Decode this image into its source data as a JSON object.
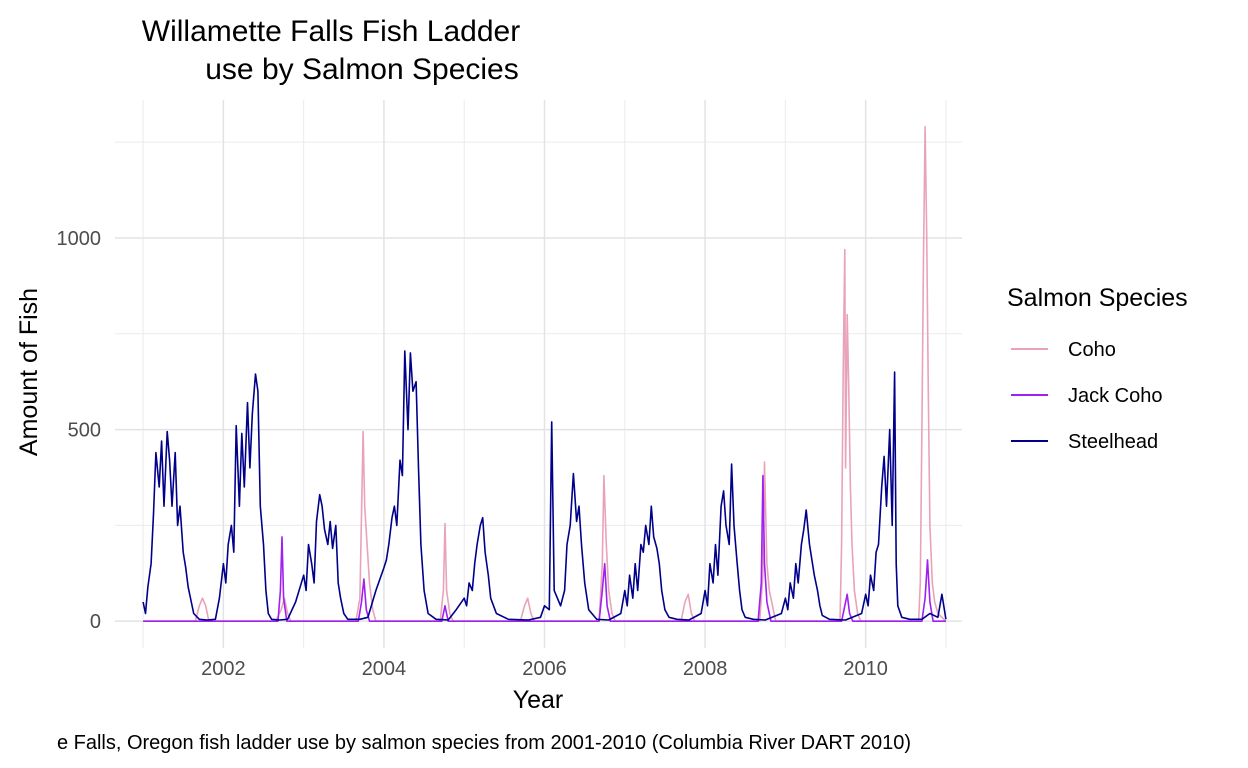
{
  "chart_data": {
    "type": "line",
    "title_line1": "Willamette Falls Fish Ladder",
    "title_line2": "use by Salmon Species",
    "xlabel": "Year",
    "ylabel": "Amount of Fish",
    "caption": "e Falls, Oregon fish ladder use by salmon species from 2001-2010 (Columbia River DART 2010)",
    "x_ticks": [
      2002,
      2004,
      2006,
      2008,
      2010
    ],
    "y_ticks": [
      0,
      500,
      1000
    ],
    "xlim": [
      2000.65,
      2011.2
    ],
    "ylim": [
      -70,
      1360
    ],
    "grid": true,
    "legend": {
      "title": "Salmon Species",
      "position": "right",
      "entries": [
        {
          "name": "Coho",
          "color": "#E8A3B8"
        },
        {
          "name": "Jack Coho",
          "color": "#A020F0"
        },
        {
          "name": "Steelhead",
          "color": "#00008B"
        }
      ]
    },
    "series": [
      {
        "name": "Steelhead",
        "color": "#00008B",
        "points": [
          [
            2001.0,
            50
          ],
          [
            2001.03,
            20
          ],
          [
            2001.06,
            90
          ],
          [
            2001.1,
            150
          ],
          [
            2001.13,
            280
          ],
          [
            2001.16,
            440
          ],
          [
            2001.2,
            350
          ],
          [
            2001.23,
            470
          ],
          [
            2001.26,
            300
          ],
          [
            2001.3,
            495
          ],
          [
            2001.33,
            420
          ],
          [
            2001.36,
            300
          ],
          [
            2001.4,
            440
          ],
          [
            2001.43,
            250
          ],
          [
            2001.46,
            300
          ],
          [
            2001.5,
            180
          ],
          [
            2001.53,
            140
          ],
          [
            2001.56,
            90
          ],
          [
            2001.6,
            50
          ],
          [
            2001.63,
            20
          ],
          [
            2001.7,
            5
          ],
          [
            2001.8,
            3
          ],
          [
            2001.9,
            5
          ],
          [
            2001.95,
            60
          ],
          [
            2002.0,
            150
          ],
          [
            2002.03,
            100
          ],
          [
            2002.06,
            200
          ],
          [
            2002.1,
            250
          ],
          [
            2002.13,
            180
          ],
          [
            2002.16,
            510
          ],
          [
            2002.2,
            300
          ],
          [
            2002.23,
            490
          ],
          [
            2002.26,
            350
          ],
          [
            2002.3,
            570
          ],
          [
            2002.33,
            400
          ],
          [
            2002.36,
            540
          ],
          [
            2002.4,
            645
          ],
          [
            2002.43,
            600
          ],
          [
            2002.46,
            300
          ],
          [
            2002.5,
            200
          ],
          [
            2002.53,
            80
          ],
          [
            2002.56,
            20
          ],
          [
            2002.6,
            5
          ],
          [
            2002.7,
            3
          ],
          [
            2002.8,
            5
          ],
          [
            2002.9,
            50
          ],
          [
            2003.0,
            120
          ],
          [
            2003.03,
            80
          ],
          [
            2003.06,
            200
          ],
          [
            2003.1,
            150
          ],
          [
            2003.13,
            100
          ],
          [
            2003.16,
            260
          ],
          [
            2003.2,
            330
          ],
          [
            2003.23,
            300
          ],
          [
            2003.26,
            240
          ],
          [
            2003.3,
            200
          ],
          [
            2003.33,
            260
          ],
          [
            2003.36,
            190
          ],
          [
            2003.4,
            250
          ],
          [
            2003.43,
            100
          ],
          [
            2003.46,
            60
          ],
          [
            2003.5,
            20
          ],
          [
            2003.55,
            5
          ],
          [
            2003.7,
            5
          ],
          [
            2003.8,
            10
          ],
          [
            2003.9,
            80
          ],
          [
            2004.0,
            140
          ],
          [
            2004.03,
            160
          ],
          [
            2004.06,
            200
          ],
          [
            2004.1,
            270
          ],
          [
            2004.13,
            300
          ],
          [
            2004.16,
            250
          ],
          [
            2004.2,
            420
          ],
          [
            2004.23,
            380
          ],
          [
            2004.26,
            705
          ],
          [
            2004.3,
            500
          ],
          [
            2004.33,
            700
          ],
          [
            2004.36,
            600
          ],
          [
            2004.4,
            625
          ],
          [
            2004.43,
            400
          ],
          [
            2004.46,
            200
          ],
          [
            2004.5,
            80
          ],
          [
            2004.55,
            20
          ],
          [
            2004.65,
            5
          ],
          [
            2004.8,
            3
          ],
          [
            2004.9,
            30
          ],
          [
            2005.0,
            60
          ],
          [
            2005.03,
            40
          ],
          [
            2005.06,
            100
          ],
          [
            2005.1,
            80
          ],
          [
            2005.13,
            150
          ],
          [
            2005.16,
            200
          ],
          [
            2005.2,
            250
          ],
          [
            2005.23,
            270
          ],
          [
            2005.26,
            180
          ],
          [
            2005.3,
            120
          ],
          [
            2005.33,
            60
          ],
          [
            2005.4,
            20
          ],
          [
            2005.55,
            5
          ],
          [
            2005.8,
            3
          ],
          [
            2005.95,
            10
          ],
          [
            2006.0,
            40
          ],
          [
            2006.06,
            30
          ],
          [
            2006.09,
            520
          ],
          [
            2006.12,
            80
          ],
          [
            2006.16,
            60
          ],
          [
            2006.2,
            40
          ],
          [
            2006.25,
            80
          ],
          [
            2006.28,
            200
          ],
          [
            2006.32,
            250
          ],
          [
            2006.36,
            385
          ],
          [
            2006.4,
            260
          ],
          [
            2006.43,
            300
          ],
          [
            2006.46,
            200
          ],
          [
            2006.5,
            100
          ],
          [
            2006.55,
            30
          ],
          [
            2006.65,
            5
          ],
          [
            2006.8,
            3
          ],
          [
            2006.95,
            20
          ],
          [
            2007.0,
            80
          ],
          [
            2007.03,
            40
          ],
          [
            2007.06,
            120
          ],
          [
            2007.1,
            60
          ],
          [
            2007.13,
            150
          ],
          [
            2007.16,
            80
          ],
          [
            2007.2,
            200
          ],
          [
            2007.23,
            180
          ],
          [
            2007.26,
            250
          ],
          [
            2007.3,
            200
          ],
          [
            2007.33,
            300
          ],
          [
            2007.36,
            220
          ],
          [
            2007.4,
            190
          ],
          [
            2007.43,
            150
          ],
          [
            2007.46,
            80
          ],
          [
            2007.5,
            30
          ],
          [
            2007.55,
            10
          ],
          [
            2007.65,
            5
          ],
          [
            2007.8,
            3
          ],
          [
            2007.95,
            20
          ],
          [
            2008.0,
            80
          ],
          [
            2008.03,
            40
          ],
          [
            2008.06,
            150
          ],
          [
            2008.1,
            100
          ],
          [
            2008.13,
            200
          ],
          [
            2008.16,
            120
          ],
          [
            2008.2,
            300
          ],
          [
            2008.23,
            340
          ],
          [
            2008.26,
            250
          ],
          [
            2008.3,
            200
          ],
          [
            2008.33,
            410
          ],
          [
            2008.36,
            250
          ],
          [
            2008.4,
            150
          ],
          [
            2008.43,
            80
          ],
          [
            2008.46,
            30
          ],
          [
            2008.5,
            10
          ],
          [
            2008.6,
            5
          ],
          [
            2008.75,
            3
          ],
          [
            2008.95,
            20
          ],
          [
            2009.0,
            60
          ],
          [
            2009.03,
            30
          ],
          [
            2009.06,
            100
          ],
          [
            2009.1,
            60
          ],
          [
            2009.13,
            150
          ],
          [
            2009.16,
            100
          ],
          [
            2009.2,
            200
          ],
          [
            2009.23,
            240
          ],
          [
            2009.26,
            290
          ],
          [
            2009.3,
            200
          ],
          [
            2009.33,
            160
          ],
          [
            2009.36,
            120
          ],
          [
            2009.4,
            80
          ],
          [
            2009.43,
            40
          ],
          [
            2009.46,
            15
          ],
          [
            2009.55,
            5
          ],
          [
            2009.75,
            3
          ],
          [
            2009.95,
            20
          ],
          [
            2010.0,
            70
          ],
          [
            2010.03,
            40
          ],
          [
            2010.06,
            120
          ],
          [
            2010.1,
            80
          ],
          [
            2010.13,
            180
          ],
          [
            2010.16,
            200
          ],
          [
            2010.2,
            350
          ],
          [
            2010.23,
            430
          ],
          [
            2010.26,
            300
          ],
          [
            2010.3,
            500
          ],
          [
            2010.33,
            250
          ],
          [
            2010.36,
            650
          ],
          [
            2010.38,
            150
          ],
          [
            2010.4,
            40
          ],
          [
            2010.45,
            10
          ],
          [
            2010.55,
            5
          ],
          [
            2010.7,
            5
          ],
          [
            2010.8,
            20
          ],
          [
            2010.9,
            10
          ],
          [
            2010.95,
            70
          ],
          [
            2011.0,
            5
          ]
        ]
      },
      {
        "name": "Coho",
        "color": "#E8A3B8",
        "points": [
          [
            2001.0,
            0
          ],
          [
            2001.65,
            0
          ],
          [
            2001.7,
            40
          ],
          [
            2001.74,
            60
          ],
          [
            2001.78,
            40
          ],
          [
            2001.82,
            0
          ],
          [
            2002.65,
            0
          ],
          [
            2002.72,
            30
          ],
          [
            2002.76,
            60
          ],
          [
            2002.8,
            20
          ],
          [
            2002.84,
            0
          ],
          [
            2003.65,
            0
          ],
          [
            2003.7,
            60
          ],
          [
            2003.74,
            495
          ],
          [
            2003.76,
            300
          ],
          [
            2003.79,
            200
          ],
          [
            2003.82,
            100
          ],
          [
            2003.86,
            30
          ],
          [
            2003.9,
            0
          ],
          [
            2004.7,
            0
          ],
          [
            2004.74,
            80
          ],
          [
            2004.76,
            255
          ],
          [
            2004.78,
            80
          ],
          [
            2004.82,
            20
          ],
          [
            2004.86,
            0
          ],
          [
            2005.7,
            0
          ],
          [
            2005.75,
            40
          ],
          [
            2005.79,
            60
          ],
          [
            2005.83,
            20
          ],
          [
            2005.87,
            0
          ],
          [
            2006.68,
            0
          ],
          [
            2006.72,
            150
          ],
          [
            2006.74,
            380
          ],
          [
            2006.77,
            200
          ],
          [
            2006.8,
            80
          ],
          [
            2006.84,
            20
          ],
          [
            2006.88,
            0
          ],
          [
            2007.7,
            0
          ],
          [
            2007.75,
            50
          ],
          [
            2007.79,
            70
          ],
          [
            2007.83,
            20
          ],
          [
            2007.87,
            0
          ],
          [
            2008.68,
            0
          ],
          [
            2008.72,
            120
          ],
          [
            2008.74,
            415
          ],
          [
            2008.77,
            150
          ],
          [
            2008.8,
            80
          ],
          [
            2008.84,
            40
          ],
          [
            2008.88,
            0
          ],
          [
            2009.68,
            0
          ],
          [
            2009.7,
            200
          ],
          [
            2009.72,
            650
          ],
          [
            2009.74,
            970
          ],
          [
            2009.75,
            400
          ],
          [
            2009.77,
            800
          ],
          [
            2009.79,
            600
          ],
          [
            2009.81,
            350
          ],
          [
            2009.83,
            200
          ],
          [
            2009.86,
            80
          ],
          [
            2009.9,
            20
          ],
          [
            2009.94,
            0
          ],
          [
            2010.66,
            0
          ],
          [
            2010.68,
            100
          ],
          [
            2010.7,
            500
          ],
          [
            2010.72,
            950
          ],
          [
            2010.74,
            1290
          ],
          [
            2010.76,
            1010
          ],
          [
            2010.78,
            600
          ],
          [
            2010.8,
            250
          ],
          [
            2010.83,
            100
          ],
          [
            2010.86,
            50
          ],
          [
            2010.9,
            20
          ],
          [
            2011.0,
            0
          ]
        ]
      },
      {
        "name": "Jack Coho",
        "color": "#A020F0",
        "points": [
          [
            2001.0,
            0
          ],
          [
            2002.68,
            0
          ],
          [
            2002.71,
            80
          ],
          [
            2002.73,
            220
          ],
          [
            2002.75,
            60
          ],
          [
            2002.79,
            0
          ],
          [
            2003.68,
            0
          ],
          [
            2003.72,
            50
          ],
          [
            2003.75,
            110
          ],
          [
            2003.78,
            30
          ],
          [
            2003.82,
            0
          ],
          [
            2004.72,
            0
          ],
          [
            2004.76,
            40
          ],
          [
            2004.8,
            0
          ],
          [
            2006.68,
            0
          ],
          [
            2006.72,
            80
          ],
          [
            2006.75,
            150
          ],
          [
            2006.78,
            40
          ],
          [
            2006.82,
            0
          ],
          [
            2008.66,
            0
          ],
          [
            2008.7,
            100
          ],
          [
            2008.72,
            380
          ],
          [
            2008.74,
            150
          ],
          [
            2008.77,
            50
          ],
          [
            2008.82,
            0
          ],
          [
            2009.7,
            0
          ],
          [
            2009.74,
            40
          ],
          [
            2009.77,
            70
          ],
          [
            2009.8,
            20
          ],
          [
            2009.84,
            0
          ],
          [
            2010.7,
            0
          ],
          [
            2010.74,
            60
          ],
          [
            2010.77,
            160
          ],
          [
            2010.8,
            50
          ],
          [
            2010.84,
            0
          ],
          [
            2011.0,
            0
          ]
        ]
      }
    ]
  }
}
